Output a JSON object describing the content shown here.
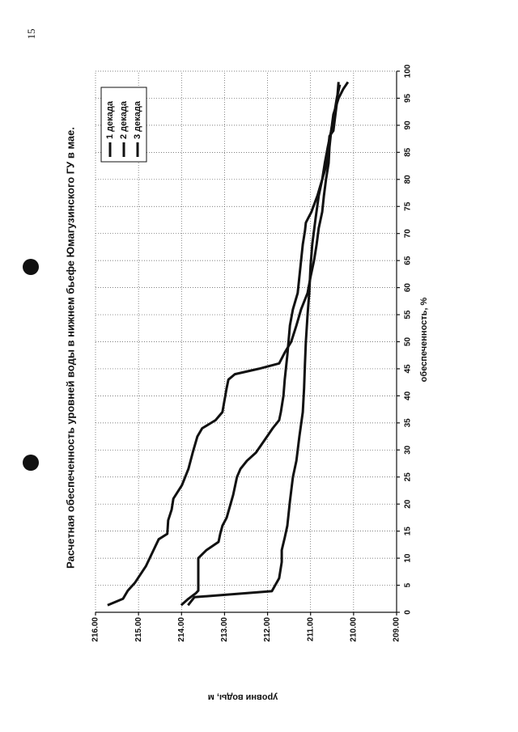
{
  "page_number": "15",
  "chart_data": {
    "type": "line",
    "title": "Расчетная обеспеченность уровней воды в нижнем бьефе Юмагузинского ГУ в мае.",
    "x_label": "обеспеченность, %",
    "y_label": "уровни воды, м",
    "xlim": [
      0,
      100
    ],
    "xticks": [
      0,
      5,
      10,
      15,
      20,
      25,
      30,
      35,
      40,
      45,
      50,
      55,
      60,
      65,
      70,
      75,
      80,
      85,
      90,
      95,
      100
    ],
    "ylim": [
      209,
      216
    ],
    "yticks": [
      {
        "value": 209,
        "label": "209.00"
      },
      {
        "value": 210,
        "label": "210.00"
      },
      {
        "value": 211,
        "label": "211.00"
      },
      {
        "value": 212,
        "label": "212.00"
      },
      {
        "value": 213,
        "label": "213.00"
      },
      {
        "value": 214,
        "label": "214.00"
      },
      {
        "value": 215,
        "label": "215.00"
      },
      {
        "value": 216,
        "label": "216.00"
      }
    ],
    "grid": true,
    "legend": "upper right",
    "series": [
      {
        "name": "1 декада",
        "color": "#111111",
        "x": [
          1.3,
          2.5,
          4,
          5.5,
          8.5,
          11.5,
          13.5,
          14.5,
          17,
          19,
          21,
          23.5,
          26.5,
          29.5,
          32.5,
          34,
          35.5,
          37,
          41.5,
          43,
          44,
          45,
          46,
          48,
          50,
          53,
          56,
          59,
          62,
          65,
          68,
          71,
          74,
          77,
          80,
          83,
          86,
          89,
          92,
          95,
          96.7,
          98
        ],
        "values": [
          215.72,
          215.36,
          215.25,
          215.08,
          214.83,
          214.65,
          214.53,
          214.33,
          214.31,
          214.23,
          214.19,
          213.99,
          213.84,
          213.74,
          213.63,
          213.52,
          213.21,
          213.05,
          212.95,
          212.91,
          212.76,
          212.2,
          211.73,
          211.6,
          211.45,
          211.33,
          211.22,
          211.07,
          211,
          210.92,
          210.86,
          210.81,
          210.73,
          210.69,
          210.64,
          210.58,
          210.56,
          210.52,
          210.47,
          210.35,
          210.24,
          210.13
        ]
      },
      {
        "name": "2 декада",
        "color": "#111111",
        "x": [
          1.3,
          2.5,
          3.5,
          4,
          10,
          11.5,
          13,
          14.5,
          16,
          17.5,
          21.7,
          25,
          26.5,
          28,
          29.5,
          31,
          32.5,
          34,
          35.5,
          37,
          40,
          43,
          47.5,
          53,
          56,
          59,
          62,
          65,
          68,
          70.5,
          72,
          74,
          77,
          80,
          83,
          88,
          89,
          94,
          98
        ],
        "values": [
          214.01,
          213.84,
          213.67,
          213.61,
          213.61,
          213.42,
          213.14,
          213.1,
          213.05,
          212.95,
          212.8,
          212.71,
          212.63,
          212.48,
          212.27,
          212.14,
          212.01,
          211.88,
          211.73,
          211.69,
          211.63,
          211.6,
          211.54,
          211.48,
          211.41,
          211.3,
          211.26,
          211.22,
          211.18,
          211.13,
          211.11,
          210.98,
          210.84,
          210.73,
          210.62,
          210.56,
          210.47,
          210.39,
          210.35
        ]
      },
      {
        "name": "3 декада",
        "color": "#111111",
        "x": [
          1.3,
          2.8,
          3.9,
          6.3,
          9.3,
          11.5,
          13.8,
          16,
          20.5,
          25,
          28,
          32.5,
          37,
          41.4,
          46,
          50,
          55,
          59,
          64,
          68,
          73,
          77,
          80,
          83,
          86,
          89,
          92,
          95,
          97.5
        ],
        "values": [
          213.85,
          213.7,
          211.9,
          211.73,
          211.67,
          211.67,
          211.6,
          211.54,
          211.48,
          211.41,
          211.33,
          211.26,
          211.18,
          211.15,
          211.13,
          211.11,
          211.07,
          211.03,
          211,
          210.96,
          210.88,
          210.81,
          210.73,
          210.67,
          210.6,
          210.52,
          210.45,
          210.39,
          210.32
        ]
      }
    ]
  }
}
